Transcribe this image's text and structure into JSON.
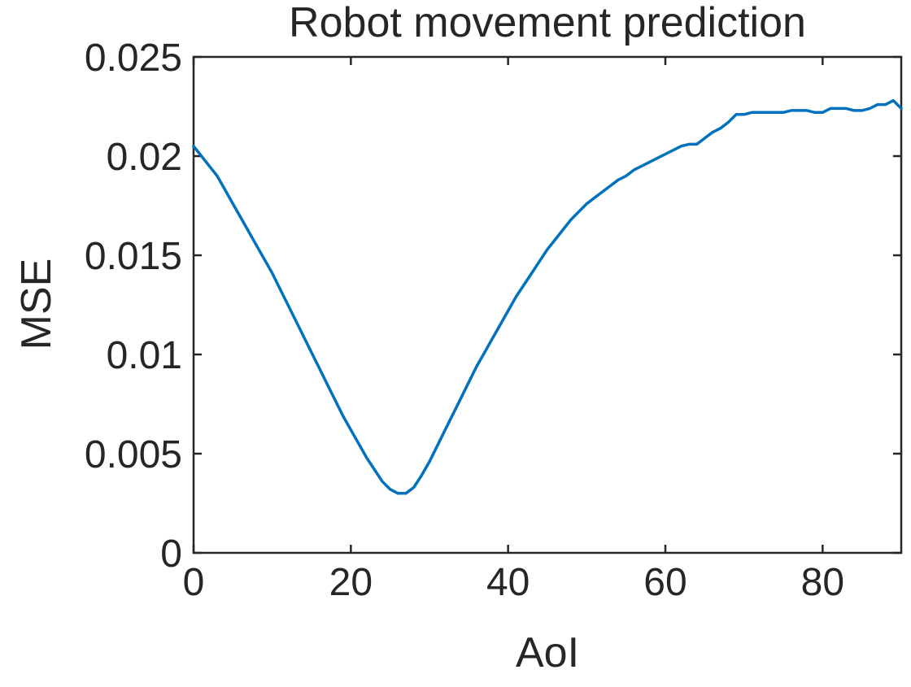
{
  "chart_data": {
    "type": "line",
    "title": "Robot movement prediction",
    "xlabel": "AoI",
    "ylabel": "MSE",
    "xlim": [
      0,
      90
    ],
    "ylim": [
      0,
      0.025
    ],
    "xticks": [
      0,
      20,
      40,
      60,
      80
    ],
    "xtick_labels": [
      "0",
      "20",
      "40",
      "60",
      "80"
    ],
    "yticks": [
      0,
      0.005,
      0.01,
      0.015,
      0.02,
      0.025
    ],
    "ytick_labels": [
      "0",
      "0.005",
      "0.01",
      "0.015",
      "0.02",
      "0.025"
    ],
    "grid": false,
    "box": true,
    "series": [
      {
        "color": "#0072BD",
        "x": [
          0,
          1,
          2,
          3,
          4,
          5,
          6,
          7,
          8,
          9,
          10,
          11,
          12,
          13,
          14,
          15,
          16,
          17,
          18,
          19,
          20,
          21,
          22,
          23,
          24,
          25,
          26,
          27,
          28,
          29,
          30,
          31,
          32,
          33,
          34,
          35,
          36,
          37,
          38,
          39,
          40,
          41,
          42,
          43,
          44,
          45,
          46,
          47,
          48,
          49,
          50,
          51,
          52,
          53,
          54,
          55,
          56,
          57,
          58,
          59,
          60,
          61,
          62,
          63,
          64,
          65,
          66,
          67,
          68,
          69,
          70,
          71,
          72,
          73,
          74,
          75,
          76,
          77,
          78,
          79,
          80,
          81,
          82,
          83,
          84,
          85,
          86,
          87,
          88,
          89,
          90
        ],
        "y": [
          0.0205,
          0.02,
          0.0195,
          0.019,
          0.0183,
          0.0176,
          0.0169,
          0.0162,
          0.0155,
          0.0148,
          0.0141,
          0.0133,
          0.0125,
          0.0117,
          0.0109,
          0.0101,
          0.0093,
          0.0085,
          0.0077,
          0.0069,
          0.0062,
          0.0055,
          0.0048,
          0.0042,
          0.0036,
          0.0032,
          0.003,
          0.003,
          0.0033,
          0.0039,
          0.0046,
          0.0054,
          0.0062,
          0.007,
          0.0078,
          0.0086,
          0.0094,
          0.0101,
          0.0108,
          0.0115,
          0.0122,
          0.0129,
          0.0135,
          0.0141,
          0.0147,
          0.0153,
          0.0158,
          0.0163,
          0.0168,
          0.0172,
          0.0176,
          0.0179,
          0.0182,
          0.0185,
          0.0188,
          0.019,
          0.0193,
          0.0195,
          0.0197,
          0.0199,
          0.0201,
          0.0203,
          0.0205,
          0.0206,
          0.0206,
          0.0209,
          0.0212,
          0.0214,
          0.0217,
          0.0221,
          0.0221,
          0.0222,
          0.0222,
          0.0222,
          0.0222,
          0.0222,
          0.0223,
          0.0223,
          0.0223,
          0.0222,
          0.0222,
          0.0224,
          0.0224,
          0.0224,
          0.0223,
          0.0223,
          0.0224,
          0.0226,
          0.0226,
          0.0228,
          0.0224
        ]
      }
    ]
  }
}
